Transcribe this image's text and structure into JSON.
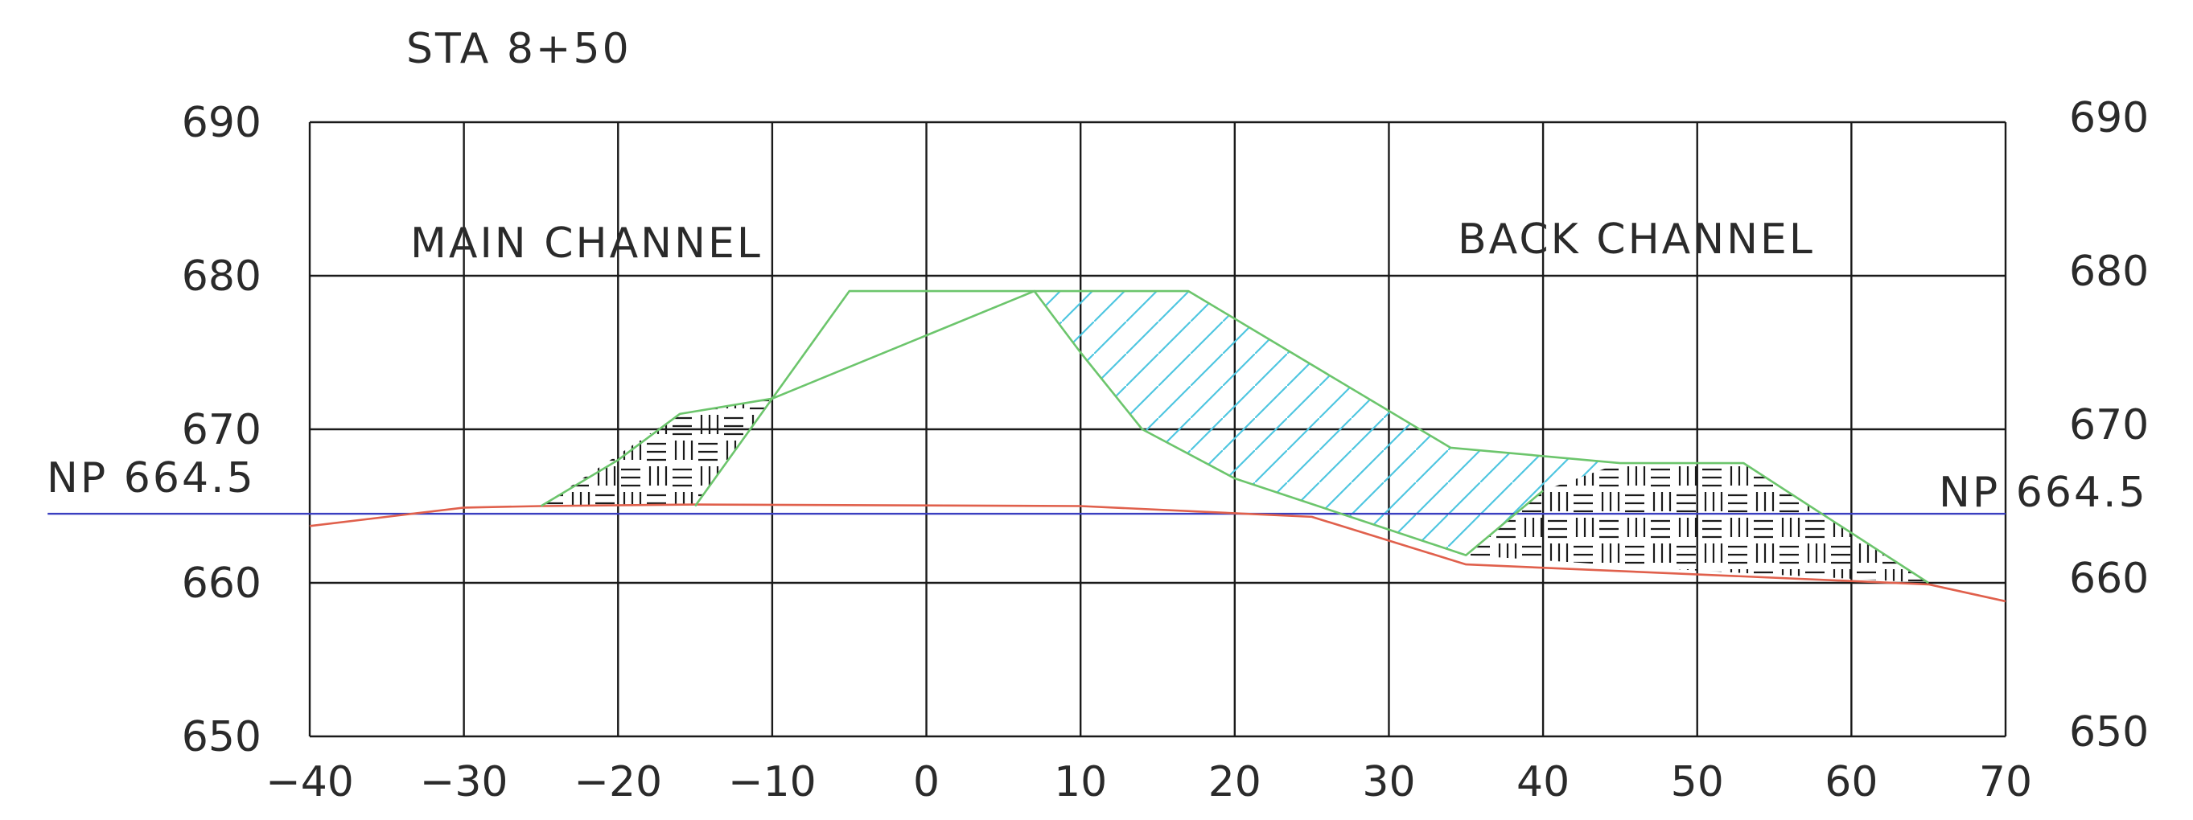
{
  "title": "STA 8+50",
  "labels": {
    "left_region": "MAIN CHANNEL",
    "right_region": "BACK CHANNEL",
    "np_left": "NP 664.5",
    "np_right": "NP 664.5"
  },
  "axes": {
    "x_ticks": [
      -40,
      -30,
      -20,
      -10,
      0,
      10,
      20,
      30,
      40,
      50,
      60,
      70
    ],
    "x_tick_labels": [
      "−40",
      "−30",
      "−20",
      "−10",
      "0",
      "10",
      "20",
      "30",
      "40",
      "50",
      "60",
      "70"
    ],
    "y_ticks": [
      650,
      660,
      670,
      680,
      690
    ],
    "y_tick_labels": [
      "650",
      "660",
      "670",
      "680",
      "690"
    ],
    "xlim": [
      -40,
      70
    ],
    "ylim": [
      650,
      690
    ],
    "grid": true
  },
  "colors": {
    "grid": "#1a1a1a",
    "water_line": "#3a3fc0",
    "existing_ground": "#e0604c",
    "proposed_section": "#6cc56c",
    "cut_hatch": "#4fc6e0",
    "fill_hatch": "#1a1a1a"
  },
  "chart_data": {
    "type": "line",
    "normal_pool": {
      "name": "NP 664.5",
      "elevation": 664.5,
      "x_extent": [
        -57,
        70
      ]
    },
    "series": [
      {
        "role": "existing_ground",
        "color": "#e0604c",
        "x": [
          -40,
          -30,
          -25,
          -15,
          10,
          25,
          35,
          65,
          70
        ],
        "y": [
          663.7,
          664.9,
          665.0,
          665.1,
          665.0,
          664.3,
          661.2,
          659.9,
          658.8
        ]
      },
      {
        "role": "proposed_section",
        "color": "#6cc56c",
        "x": [
          -25,
          -20,
          -16,
          -10,
          -5,
          7,
          17,
          34,
          45,
          53,
          65
        ],
        "y": [
          665.0,
          668.0,
          671.0,
          672.0,
          679.0,
          679.0,
          679.0,
          668.8,
          667.8,
          667.8,
          660.0
        ]
      },
      {
        "role": "inner_grade",
        "color": "#6cc56c",
        "x": [
          -15,
          -10,
          7,
          10,
          14,
          20,
          35,
          40
        ],
        "y": [
          665.0,
          672.0,
          679.0,
          675.0,
          670.0,
          666.8,
          661.8,
          666.0
        ]
      }
    ],
    "hatched_areas": [
      {
        "pattern": "basketweave",
        "color": "#1a1a1a",
        "polygon_x": [
          -25,
          -16,
          -10,
          -15
        ],
        "polygon_y": [
          665.0,
          671.0,
          672.0,
          665.1
        ]
      },
      {
        "pattern": "diagonal",
        "color": "#4fc6e0",
        "polygon_x": [
          7,
          17,
          34,
          45,
          40,
          35,
          20,
          14,
          10
        ],
        "polygon_y": [
          679.0,
          679.0,
          668.8,
          667.8,
          666.0,
          661.8,
          666.8,
          670.0,
          675.0
        ]
      },
      {
        "pattern": "basketweave",
        "color": "#1a1a1a",
        "polygon_x": [
          35,
          40,
          45,
          53,
          65,
          50
        ],
        "polygon_y": [
          661.8,
          666.0,
          667.8,
          667.8,
          660.0,
          660.8
        ]
      }
    ]
  }
}
